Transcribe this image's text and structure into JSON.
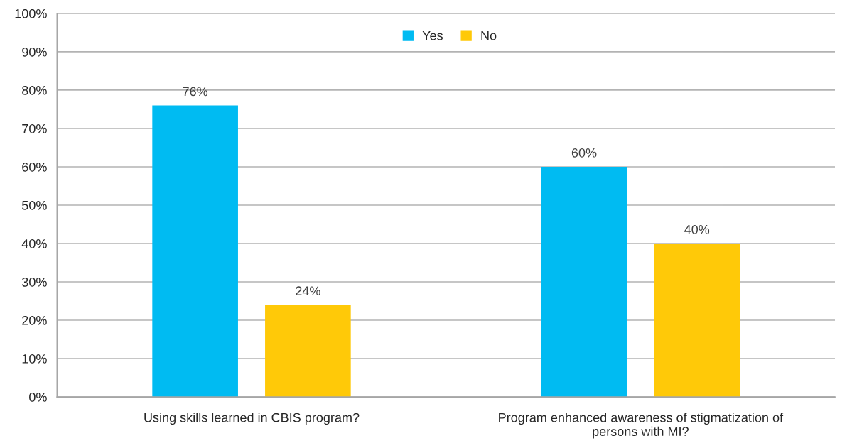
{
  "chart_data": {
    "type": "bar",
    "categories": [
      "Using skills learned in CBIS program?",
      "Program enhanced awareness of stigmatization of\npersons with MI?"
    ],
    "series": [
      {
        "name": "Yes",
        "color": "#00bbf2",
        "values": [
          76,
          60
        ],
        "value_labels": [
          "76%",
          "60%"
        ]
      },
      {
        "name": "No",
        "color": "#ffc908",
        "values": [
          24,
          40
        ],
        "value_labels": [
          "24%",
          "40%"
        ]
      }
    ],
    "ylim": [
      0,
      100
    ],
    "yticks": [
      {
        "value": 0,
        "label": "0%"
      },
      {
        "value": 10,
        "label": "10%"
      },
      {
        "value": 20,
        "label": "20%"
      },
      {
        "value": 30,
        "label": "30%"
      },
      {
        "value": 40,
        "label": "40%"
      },
      {
        "value": 50,
        "label": "50%"
      },
      {
        "value": 60,
        "label": "60%"
      },
      {
        "value": 70,
        "label": "70%"
      },
      {
        "value": 80,
        "label": "80%"
      },
      {
        "value": 90,
        "label": "90%"
      },
      {
        "value": 100,
        "label": "100%"
      }
    ],
    "grid": "y",
    "legend": "top"
  }
}
